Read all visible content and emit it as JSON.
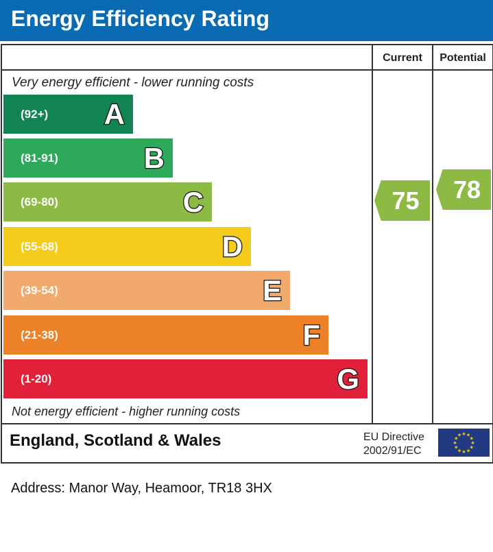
{
  "chart_data": {
    "type": "bar",
    "title": "Energy Efficiency Rating",
    "columns": [
      "Current",
      "Potential"
    ],
    "top_note": "Very energy efficient - lower running costs",
    "bottom_note": "Not energy efficient - higher running costs",
    "bands": [
      {
        "letter": "A",
        "range": "(92+)",
        "color": "#128454"
      },
      {
        "letter": "B",
        "range": "(81-91)",
        "color": "#2ea85b"
      },
      {
        "letter": "C",
        "range": "(69-80)",
        "color": "#8cba44"
      },
      {
        "letter": "D",
        "range": "(55-68)",
        "color": "#f5cc1c"
      },
      {
        "letter": "E",
        "range": "(39-54)",
        "color": "#f2aa6c"
      },
      {
        "letter": "F",
        "range": "(21-38)",
        "color": "#ec8128"
      },
      {
        "letter": "G",
        "range": "(1-20)",
        "color": "#e1213a"
      }
    ],
    "current": {
      "value": "75",
      "band": "C",
      "color": "#8cba44"
    },
    "potential": {
      "value": "78",
      "band": "C",
      "color": "#8cba44"
    }
  },
  "footer": {
    "region": "England, Scotland & Wales",
    "directive_line1": "EU Directive",
    "directive_line2": "2002/91/EC",
    "flag_icon": "eu-flag-icon"
  },
  "address": "Address: Manor Way, Heamoor, TR18 3HX",
  "colors": {
    "header": "#0a6bb3"
  }
}
